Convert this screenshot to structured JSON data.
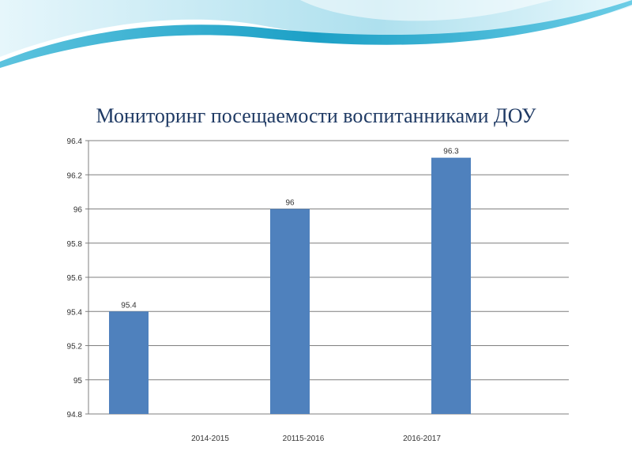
{
  "title": "Мониторинг посещаемости воспитанниками ДОУ",
  "colors": {
    "bar": "#4f81bd",
    "axis": "#777777",
    "wave_dark": "#1fa5c8",
    "wave_light": "#bfe8f3"
  },
  "chart_data": {
    "type": "bar",
    "title": "Мониторинг посещаемости воспитанниками ДОУ",
    "xlabel": "",
    "ylabel": "",
    "ylim": [
      94.8,
      96.4
    ],
    "yticks": [
      "94.8",
      "95",
      "95.2",
      "95.4",
      "95.6",
      "95.8",
      "96",
      "96.2",
      "96.4"
    ],
    "grid": true,
    "series": [
      {
        "values": [
          95.4,
          null,
          96,
          null,
          96.3
        ]
      }
    ],
    "data_labels": [
      "95.4",
      "",
      "96",
      "",
      "96.3"
    ],
    "categories": [
      "",
      "2014-2015",
      "20115-2016",
      "",
      "2016-2017"
    ]
  }
}
